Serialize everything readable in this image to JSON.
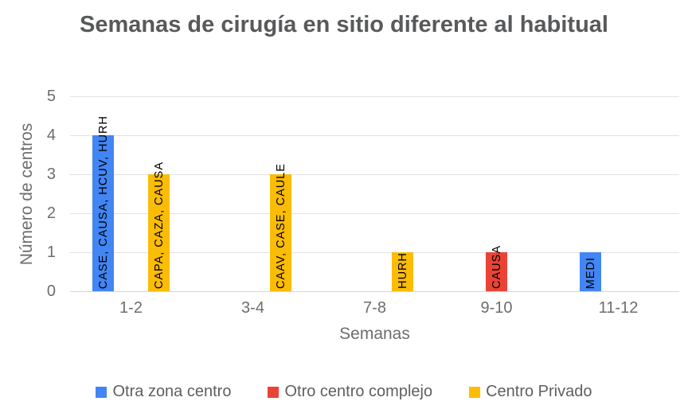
{
  "chart_data": {
    "type": "bar",
    "title": "Semanas de cirugía en sitio diferente al habitual",
    "xlabel": "Semanas",
    "ylabel": "Número de centros",
    "ylim": [
      0,
      5
    ],
    "yticks": [
      0,
      1,
      2,
      3,
      4,
      5
    ],
    "grid": true,
    "legend_position": "bottom",
    "categories": [
      "1-2",
      "3-4",
      "7-8",
      "9-10",
      "11-12"
    ],
    "series": [
      {
        "name": "Otra zona centro",
        "color": "#4285F4",
        "values": [
          4,
          null,
          null,
          null,
          1
        ],
        "bar_labels": [
          "CASE, CAUSA, HCUV, HURH",
          null,
          null,
          null,
          "MEDI"
        ]
      },
      {
        "name": "Otro centro complejo",
        "color": "#EA4335",
        "values": [
          null,
          null,
          null,
          1,
          null
        ],
        "bar_labels": [
          null,
          null,
          null,
          "CAUSA",
          null
        ]
      },
      {
        "name": "Centro Privado",
        "color": "#FBBC04",
        "values": [
          3,
          3,
          1,
          null,
          null
        ],
        "bar_labels": [
          "CAPA, CAZA, CAUSA",
          "CAAV, CASE, CAULE",
          "HURH",
          null,
          null
        ]
      }
    ]
  },
  "colors": {
    "title_text": "#58595b",
    "axis_text": "#6d6d6d",
    "legend_text": "#5f5f5f",
    "gridline": "#e2e2e2",
    "baseline": "#d6d6d6",
    "bar_label_text": "#000000"
  }
}
